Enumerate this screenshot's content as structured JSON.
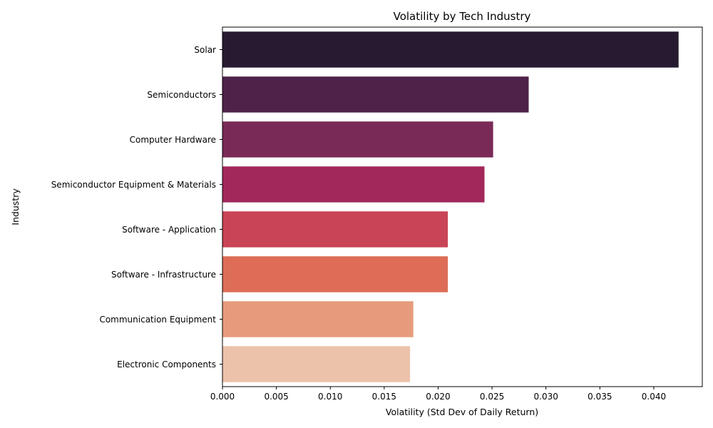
{
  "chart_data": {
    "type": "bar",
    "orientation": "horizontal",
    "title": "Volatility by Tech Industry",
    "xlabel": "Volatility (Std Dev of Daily Return)",
    "ylabel": "Industry",
    "categories": [
      "Solar",
      "Semiconductors",
      "Computer Hardware",
      "Semiconductor Equipment & Materials",
      "Software - Application",
      "Software - Infrastructure",
      "Communication Equipment",
      "Electronic Components"
    ],
    "values": [
      0.0423,
      0.0284,
      0.0251,
      0.0243,
      0.0209,
      0.0209,
      0.0177,
      0.0174
    ],
    "colors": [
      "#271b31",
      "#4f2249",
      "#7a2a57",
      "#a2285a",
      "#c94455",
      "#dd6d56",
      "#e69c7c",
      "#ecc2ab"
    ],
    "xlim": [
      0,
      0.0445
    ],
    "xticks": [
      "0.000",
      "0.005",
      "0.010",
      "0.015",
      "0.020",
      "0.025",
      "0.030",
      "0.035",
      "0.040"
    ],
    "grid": false,
    "legend": "none"
  }
}
